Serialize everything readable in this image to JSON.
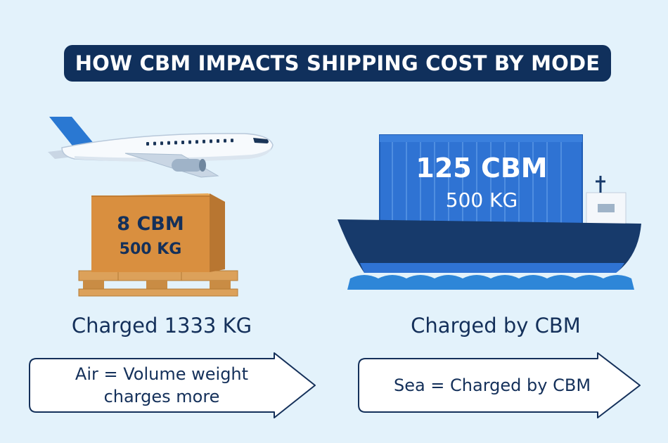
{
  "title": "HOW CBM IMPACTS SHIPPING COST BY MODE",
  "colors": {
    "title_bg": "#10305c",
    "background": "#e3f2fb",
    "text_navy": "#14305a",
    "crate": "#d98f3f",
    "pallet": "#dca15a",
    "container": "#2f73d3",
    "ship_hull": "#173a6b",
    "water": "#2e86d8",
    "plane_tail": "#2a78d2"
  },
  "air": {
    "icon": "airplane-icon",
    "crate_volume": "8 CBM",
    "crate_weight": "500 KG",
    "charged_label": "Charged 1333 KG",
    "arrow_line1": "Air = Volume weight",
    "arrow_line2": "charges more"
  },
  "sea": {
    "icon": "cargo-ship-icon",
    "container_volume": "125 CBM",
    "container_weight": "500 KG",
    "charged_label": "Charged by CBM",
    "arrow_text": "Sea = Charged by CBM"
  }
}
